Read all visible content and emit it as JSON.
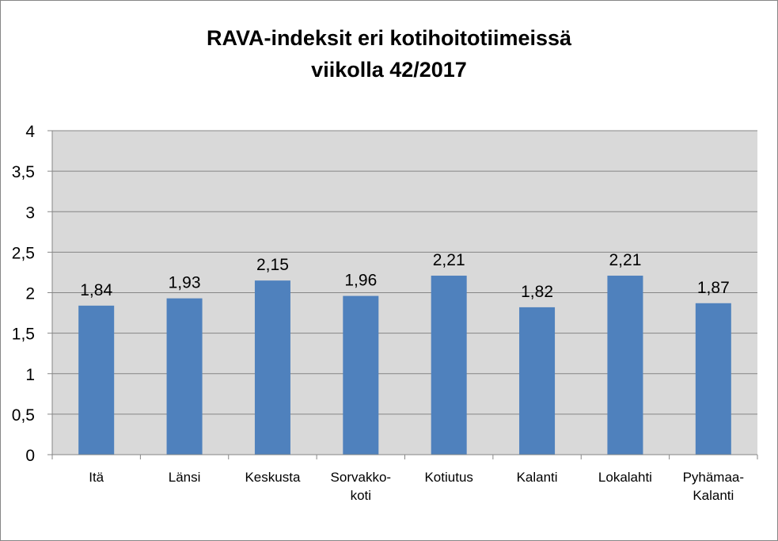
{
  "chart_data": {
    "type": "bar",
    "title_lines": [
      "RAVA-indeksit eri kotihoitotiimeissä",
      "viikolla 42/2017"
    ],
    "categories": [
      [
        "Itä"
      ],
      [
        "Länsi"
      ],
      [
        "Keskusta"
      ],
      [
        "Sorvakko-",
        "koti"
      ],
      [
        "Kotiutus"
      ],
      [
        "Kalanti"
      ],
      [
        "Lokalahti"
      ],
      [
        "Pyhämaa-",
        "Kalanti"
      ]
    ],
    "values": [
      1.84,
      1.93,
      2.15,
      1.96,
      2.21,
      1.82,
      2.21,
      1.87
    ],
    "data_labels": [
      "1,84",
      "1,93",
      "2,15",
      "1,96",
      "2,21",
      "1,82",
      "2,21",
      "1,87"
    ],
    "ylim": [
      0,
      4
    ],
    "yticks": [
      0,
      0.5,
      1,
      1.5,
      2,
      2.5,
      3,
      3.5,
      4
    ],
    "ytick_labels": [
      "0",
      "0,5",
      "1",
      "1,5",
      "2",
      "2,5",
      "3",
      "3,5",
      "4"
    ],
    "grid": true,
    "legend": "none",
    "colors": {
      "bar": "#4f81bd",
      "plot_background": "#d9d9d9",
      "gridline": "#868686"
    }
  }
}
